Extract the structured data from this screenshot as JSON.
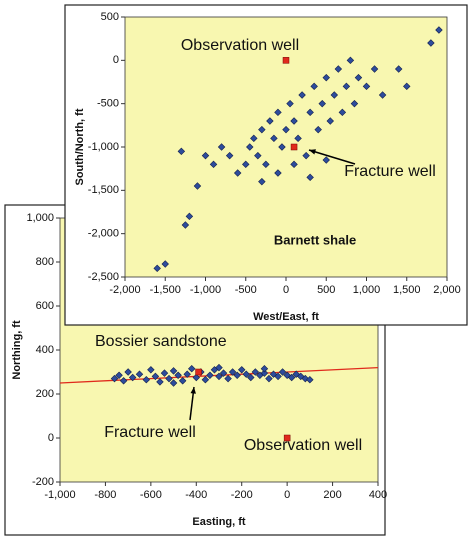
{
  "chart_data": [
    {
      "type": "scatter",
      "xlabel": "Easting, ft",
      "ylabel": "Northing, ft",
      "xlim": [
        -1000,
        400
      ],
      "ylim": [
        -200,
        1000
      ],
      "xticks": [
        {
          "value": -1000,
          "label": "-1,000"
        },
        -800,
        -600,
        -400,
        -200,
        0,
        200,
        400
      ],
      "yticks": [
        -200,
        0,
        200,
        400,
        600,
        800,
        {
          "value": 1000,
          "label": "1,000"
        }
      ],
      "background": "#f8f7b0",
      "series": [
        {
          "color": "#2d4c9c",
          "x": [
            -760,
            -740,
            -720,
            -700,
            -680,
            -650,
            -620,
            -600,
            -580,
            -560,
            -540,
            -520,
            -500,
            -480,
            -460,
            -440,
            -420,
            -400,
            -380,
            -360,
            -340,
            -320,
            -300,
            -280,
            -260,
            -240,
            -220,
            -200,
            -180,
            -160,
            -140,
            -120,
            -100,
            -80,
            -60,
            -40,
            -20,
            0,
            20,
            40,
            60,
            80,
            100,
            -500,
            -300,
            -100
          ],
          "y": [
            270,
            285,
            260,
            300,
            275,
            290,
            265,
            310,
            280,
            255,
            295,
            270,
            305,
            285,
            260,
            290,
            315,
            275,
            300,
            265,
            285,
            310,
            280,
            295,
            270,
            300,
            285,
            310,
            290,
            275,
            300,
            285,
            295,
            270,
            290,
            280,
            300,
            285,
            275,
            290,
            280,
            270,
            265,
            250,
            320,
            315
          ]
        }
      ],
      "trendline": {
        "x": [
          -1000,
          400
        ],
        "y": [
          250,
          320
        ],
        "color": "#e02a1c"
      },
      "labels": [
        "Bossier sandstone"
      ],
      "wells": [
        {
          "label": "Fracture well",
          "x": -390,
          "y": 300,
          "color": "#e02a1c"
        },
        {
          "label": "Observation well",
          "x": 0,
          "y": 0,
          "color": "#e02a1c"
        }
      ]
    },
    {
      "type": "scatter",
      "xlabel": "West/East, ft",
      "ylabel": "South/North, ft",
      "xlim": [
        -2000,
        2000
      ],
      "ylim": [
        -2500,
        500
      ],
      "xticks": [
        {
          "value": -2000,
          "label": "-2,000"
        },
        {
          "value": -1500,
          "label": "-1,500"
        },
        {
          "value": -1000,
          "label": "-1,000"
        },
        -500,
        0,
        500,
        {
          "value": 1000,
          "label": "1,000"
        },
        {
          "value": 1500,
          "label": "1,500"
        },
        {
          "value": 2000,
          "label": "2,000"
        }
      ],
      "yticks": [
        500,
        0,
        -500,
        {
          "value": -1000,
          "label": "-1,000"
        },
        {
          "value": -1500,
          "label": "-1,500"
        },
        {
          "value": -2000,
          "label": "-2,000"
        },
        {
          "value": -2500,
          "label": "-2,500"
        }
      ],
      "background": "#f8f7b0",
      "series": [
        {
          "color": "#2d4c9c",
          "x": [
            -1600,
            -1500,
            -1250,
            -1200,
            -1100,
            -900,
            -800,
            -700,
            -600,
            -500,
            -450,
            -400,
            -350,
            -300,
            -250,
            -200,
            -150,
            -100,
            -50,
            0,
            50,
            100,
            150,
            200,
            250,
            300,
            350,
            400,
            450,
            500,
            550,
            600,
            650,
            700,
            750,
            800,
            850,
            900,
            1000,
            1100,
            1200,
            1400,
            1500,
            1800,
            1900,
            -300,
            -100,
            100,
            300,
            500,
            -1300,
            -1000
          ],
          "y": [
            -2400,
            -2350,
            -1900,
            -1800,
            -1450,
            -1200,
            -1000,
            -1100,
            -1300,
            -1200,
            -1000,
            -900,
            -1100,
            -800,
            -1200,
            -700,
            -900,
            -600,
            -1000,
            -800,
            -500,
            -700,
            -900,
            -400,
            -1100,
            -600,
            -300,
            -800,
            -500,
            -200,
            -700,
            -400,
            -100,
            -600,
            -300,
            0,
            -500,
            -200,
            -300,
            -100,
            -400,
            -100,
            -300,
            200,
            350,
            -1400,
            -1300,
            -1200,
            -1350,
            -1150,
            -1050,
            -1100
          ]
        }
      ],
      "labels": [
        "Barnett shale"
      ],
      "wells": [
        {
          "label": "Observation well",
          "x": 0,
          "y": 0,
          "color": "#e02a1c"
        },
        {
          "label": "Fracture well",
          "x": 100,
          "y": -1000,
          "color": "#e02a1c"
        }
      ]
    }
  ]
}
